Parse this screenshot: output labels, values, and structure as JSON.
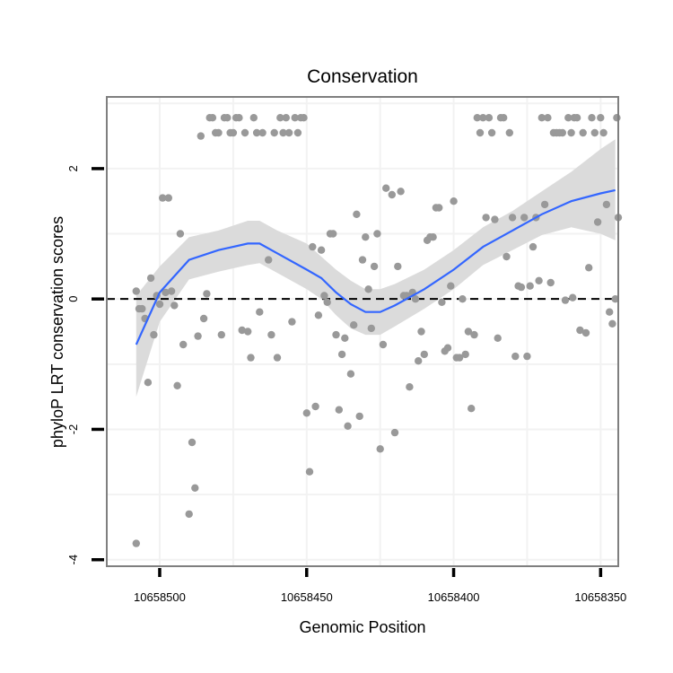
{
  "chart_data": {
    "type": "scatter",
    "title": "Conservation",
    "xlabel": "Genomic Position",
    "ylabel": "phyloP LRT conservation scores",
    "x_reversed": true,
    "xlim": [
      10658518,
      10658344
    ],
    "ylim": [
      -4.1,
      3.1
    ],
    "x_ticks": [
      10658500,
      10658450,
      10658400,
      10658350
    ],
    "x_tick_labels": [
      "10658500",
      "10658450",
      "10658400",
      "10658350"
    ],
    "y_ticks": [
      -4,
      -2,
      0,
      2
    ],
    "y_tick_labels": [
      "-4",
      "-2",
      "0",
      "2"
    ],
    "grid": true,
    "reference_line": {
      "y": 0,
      "style": "dashed"
    },
    "colors": {
      "points": "#999999",
      "smooth": "#3366FF",
      "ribbon": "#d9d9d9",
      "panel_border": "#7f7f7f",
      "grid": "#f2f2f2"
    },
    "points": [
      {
        "x": 10658508,
        "y": -3.75
      },
      {
        "x": 10658508,
        "y": 0.12
      },
      {
        "x": 10658507,
        "y": -0.15
      },
      {
        "x": 10658506,
        "y": -0.15
      },
      {
        "x": 10658505,
        "y": -0.3
      },
      {
        "x": 10658504,
        "y": -1.28
      },
      {
        "x": 10658503,
        "y": 0.32
      },
      {
        "x": 10658502,
        "y": -0.55
      },
      {
        "x": 10658501,
        "y": 0.05
      },
      {
        "x": 10658500,
        "y": -0.08
      },
      {
        "x": 10658499,
        "y": 1.55
      },
      {
        "x": 10658497,
        "y": 1.55
      },
      {
        "x": 10658498,
        "y": 0.1
      },
      {
        "x": 10658496,
        "y": 0.12
      },
      {
        "x": 10658495,
        "y": -0.1
      },
      {
        "x": 10658494,
        "y": -1.33
      },
      {
        "x": 10658493,
        "y": 1.0
      },
      {
        "x": 10658492,
        "y": -0.7
      },
      {
        "x": 10658490,
        "y": -3.3
      },
      {
        "x": 10658489,
        "y": -2.2
      },
      {
        "x": 10658488,
        "y": -2.9
      },
      {
        "x": 10658487,
        "y": -0.57
      },
      {
        "x": 10658486,
        "y": 2.5
      },
      {
        "x": 10658485,
        "y": -0.3
      },
      {
        "x": 10658484,
        "y": 0.08
      },
      {
        "x": 10658483,
        "y": 2.78
      },
      {
        "x": 10658482,
        "y": 2.78
      },
      {
        "x": 10658481,
        "y": 2.55
      },
      {
        "x": 10658480,
        "y": 2.55
      },
      {
        "x": 10658479,
        "y": -0.55
      },
      {
        "x": 10658478,
        "y": 2.78
      },
      {
        "x": 10658477,
        "y": 2.78
      },
      {
        "x": 10658476,
        "y": 2.55
      },
      {
        "x": 10658475,
        "y": 2.55
      },
      {
        "x": 10658474,
        "y": 2.78
      },
      {
        "x": 10658473,
        "y": 2.78
      },
      {
        "x": 10658472,
        "y": -0.48
      },
      {
        "x": 10658471,
        "y": 2.55
      },
      {
        "x": 10658470,
        "y": -0.5
      },
      {
        "x": 10658469,
        "y": -0.9
      },
      {
        "x": 10658468,
        "y": 2.78
      },
      {
        "x": 10658467,
        "y": 2.55
      },
      {
        "x": 10658466,
        "y": -0.2
      },
      {
        "x": 10658465,
        "y": 2.55
      },
      {
        "x": 10658463,
        "y": 0.6
      },
      {
        "x": 10658462,
        "y": -0.55
      },
      {
        "x": 10658461,
        "y": 2.55
      },
      {
        "x": 10658460,
        "y": -0.9
      },
      {
        "x": 10658459,
        "y": 2.78
      },
      {
        "x": 10658458,
        "y": 2.55
      },
      {
        "x": 10658457,
        "y": 2.78
      },
      {
        "x": 10658456,
        "y": 2.55
      },
      {
        "x": 10658455,
        "y": -0.35
      },
      {
        "x": 10658454,
        "y": 2.78
      },
      {
        "x": 10658453,
        "y": 2.55
      },
      {
        "x": 10658452,
        "y": 2.78
      },
      {
        "x": 10658451,
        "y": 2.78
      },
      {
        "x": 10658450,
        "y": -1.75
      },
      {
        "x": 10658449,
        "y": -2.65
      },
      {
        "x": 10658448,
        "y": 0.8
      },
      {
        "x": 10658447,
        "y": -1.65
      },
      {
        "x": 10658446,
        "y": -0.25
      },
      {
        "x": 10658445,
        "y": 0.75
      },
      {
        "x": 10658444,
        "y": 0.05
      },
      {
        "x": 10658443,
        "y": -0.05
      },
      {
        "x": 10658442,
        "y": 1.0
      },
      {
        "x": 10658441,
        "y": 1.0
      },
      {
        "x": 10658440,
        "y": -0.55
      },
      {
        "x": 10658439,
        "y": -1.7
      },
      {
        "x": 10658438,
        "y": -0.85
      },
      {
        "x": 10658437,
        "y": -0.6
      },
      {
        "x": 10658436,
        "y": -1.95
      },
      {
        "x": 10658435,
        "y": -1.15
      },
      {
        "x": 10658434,
        "y": -0.4
      },
      {
        "x": 10658433,
        "y": 1.3
      },
      {
        "x": 10658432,
        "y": -1.8
      },
      {
        "x": 10658431,
        "y": 0.6
      },
      {
        "x": 10658430,
        "y": 0.95
      },
      {
        "x": 10658429,
        "y": 0.15
      },
      {
        "x": 10658428,
        "y": -0.45
      },
      {
        "x": 10658427,
        "y": 0.5
      },
      {
        "x": 10658426,
        "y": 1.0
      },
      {
        "x": 10658425,
        "y": -2.3
      },
      {
        "x": 10658424,
        "y": -0.7
      },
      {
        "x": 10658423,
        "y": 1.7
      },
      {
        "x": 10658421,
        "y": 1.6
      },
      {
        "x": 10658420,
        "y": -2.05
      },
      {
        "x": 10658419,
        "y": 0.5
      },
      {
        "x": 10658418,
        "y": 1.65
      },
      {
        "x": 10658417,
        "y": 0.05
      },
      {
        "x": 10658416,
        "y": 0.05
      },
      {
        "x": 10658415,
        "y": -1.35
      },
      {
        "x": 10658414,
        "y": 0.1
      },
      {
        "x": 10658413,
        "y": 0.0
      },
      {
        "x": 10658412,
        "y": -0.95
      },
      {
        "x": 10658411,
        "y": -0.5
      },
      {
        "x": 10658410,
        "y": -0.85
      },
      {
        "x": 10658409,
        "y": 0.9
      },
      {
        "x": 10658408,
        "y": 0.95
      },
      {
        "x": 10658407,
        "y": 0.95
      },
      {
        "x": 10658406,
        "y": 1.4
      },
      {
        "x": 10658405,
        "y": 1.4
      },
      {
        "x": 10658404,
        "y": -0.05
      },
      {
        "x": 10658403,
        "y": -0.8
      },
      {
        "x": 10658402,
        "y": -0.75
      },
      {
        "x": 10658401,
        "y": 0.2
      },
      {
        "x": 10658400,
        "y": 1.5
      },
      {
        "x": 10658399,
        "y": -0.9
      },
      {
        "x": 10658398,
        "y": -0.9
      },
      {
        "x": 10658397,
        "y": 0.0
      },
      {
        "x": 10658396,
        "y": -0.85
      },
      {
        "x": 10658395,
        "y": -0.5
      },
      {
        "x": 10658394,
        "y": -1.68
      },
      {
        "x": 10658393,
        "y": -0.55
      },
      {
        "x": 10658392,
        "y": 2.78
      },
      {
        "x": 10658391,
        "y": 2.55
      },
      {
        "x": 10658390,
        "y": 2.78
      },
      {
        "x": 10658389,
        "y": 1.25
      },
      {
        "x": 10658388,
        "y": 2.78
      },
      {
        "x": 10658387,
        "y": 2.55
      },
      {
        "x": 10658386,
        "y": 1.22
      },
      {
        "x": 10658385,
        "y": -0.6
      },
      {
        "x": 10658384,
        "y": 2.78
      },
      {
        "x": 10658383,
        "y": 2.78
      },
      {
        "x": 10658382,
        "y": 0.65
      },
      {
        "x": 10658381,
        "y": 2.55
      },
      {
        "x": 10658380,
        "y": 1.25
      },
      {
        "x": 10658379,
        "y": -0.88
      },
      {
        "x": 10658378,
        "y": 0.2
      },
      {
        "x": 10658377,
        "y": 0.18
      },
      {
        "x": 10658376,
        "y": 1.25
      },
      {
        "x": 10658375,
        "y": -0.88
      },
      {
        "x": 10658374,
        "y": 0.2
      },
      {
        "x": 10658373,
        "y": 0.8
      },
      {
        "x": 10658372,
        "y": 1.25
      },
      {
        "x": 10658371,
        "y": 0.28
      },
      {
        "x": 10658370,
        "y": 2.78
      },
      {
        "x": 10658369,
        "y": 1.45
      },
      {
        "x": 10658368,
        "y": 2.78
      },
      {
        "x": 10658367,
        "y": 0.25
      },
      {
        "x": 10658366,
        "y": 2.55
      },
      {
        "x": 10658365,
        "y": 2.55
      },
      {
        "x": 10658364,
        "y": 2.55
      },
      {
        "x": 10658363,
        "y": 2.55
      },
      {
        "x": 10658362,
        "y": -0.02
      },
      {
        "x": 10658361,
        "y": 2.78
      },
      {
        "x": 10658360,
        "y": 2.55
      },
      {
        "x": 10658359,
        "y": 2.78
      },
      {
        "x": 10658359.5,
        "y": 0.02
      },
      {
        "x": 10658358,
        "y": 2.78
      },
      {
        "x": 10658357,
        "y": -0.48
      },
      {
        "x": 10658356,
        "y": 2.55
      },
      {
        "x": 10658355,
        "y": -0.52
      },
      {
        "x": 10658354,
        "y": 0.48
      },
      {
        "x": 10658353,
        "y": 2.78
      },
      {
        "x": 10658352,
        "y": 2.55
      },
      {
        "x": 10658351,
        "y": 1.18
      },
      {
        "x": 10658350,
        "y": 2.78
      },
      {
        "x": 10658349,
        "y": 2.55
      },
      {
        "x": 10658348,
        "y": 1.45
      },
      {
        "x": 10658347,
        "y": -0.2
      },
      {
        "x": 10658346,
        "y": -0.38
      },
      {
        "x": 10658345,
        "y": 0.0
      },
      {
        "x": 10658344.5,
        "y": 2.78
      },
      {
        "x": 10658344,
        "y": 1.25
      }
    ],
    "smooth": [
      {
        "x": 10658508,
        "y": -0.7,
        "lo": -1.5,
        "hi": 0.05
      },
      {
        "x": 10658500,
        "y": 0.1,
        "lo": -0.35,
        "hi": 0.5
      },
      {
        "x": 10658490,
        "y": 0.6,
        "lo": 0.3,
        "hi": 0.95
      },
      {
        "x": 10658480,
        "y": 0.75,
        "lo": 0.42,
        "hi": 1.05
      },
      {
        "x": 10658470,
        "y": 0.85,
        "lo": 0.52,
        "hi": 1.2
      },
      {
        "x": 10658466,
        "y": 0.85,
        "lo": 0.55,
        "hi": 1.2
      },
      {
        "x": 10658460,
        "y": 0.7,
        "lo": 0.4,
        "hi": 1.05
      },
      {
        "x": 10658450,
        "y": 0.45,
        "lo": 0.15,
        "hi": 0.85
      },
      {
        "x": 10658445,
        "y": 0.32,
        "lo": 0.0,
        "hi": 0.65
      },
      {
        "x": 10658440,
        "y": 0.1,
        "lo": -0.25,
        "hi": 0.45
      },
      {
        "x": 10658435,
        "y": -0.08,
        "lo": -0.45,
        "hi": 0.28
      },
      {
        "x": 10658430,
        "y": -0.2,
        "lo": -0.55,
        "hi": 0.15
      },
      {
        "x": 10658425,
        "y": -0.2,
        "lo": -0.55,
        "hi": 0.15
      },
      {
        "x": 10658420,
        "y": -0.1,
        "lo": -0.42,
        "hi": 0.23
      },
      {
        "x": 10658410,
        "y": 0.15,
        "lo": -0.15,
        "hi": 0.45
      },
      {
        "x": 10658400,
        "y": 0.45,
        "lo": 0.15,
        "hi": 0.75
      },
      {
        "x": 10658390,
        "y": 0.8,
        "lo": 0.52,
        "hi": 1.1
      },
      {
        "x": 10658380,
        "y": 1.05,
        "lo": 0.75,
        "hi": 1.35
      },
      {
        "x": 10658370,
        "y": 1.3,
        "lo": 0.98,
        "hi": 1.65
      },
      {
        "x": 10658360,
        "y": 1.5,
        "lo": 1.1,
        "hi": 1.95
      },
      {
        "x": 10658350,
        "y": 1.62,
        "lo": 1.0,
        "hi": 2.3
      },
      {
        "x": 10658345,
        "y": 1.67,
        "lo": 0.9,
        "hi": 2.45
      }
    ]
  }
}
